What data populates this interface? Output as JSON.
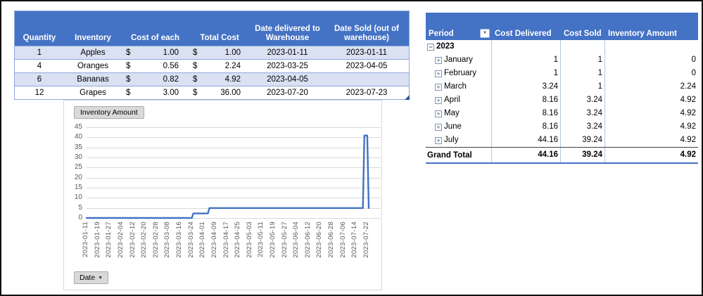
{
  "inventory_table": {
    "currency_symbol": "$",
    "headers": [
      "Quantity",
      "Inventory",
      "Cost of each",
      "Total Cost",
      "Date delivered to Warehouse",
      "Date Sold (out of warehouse)"
    ],
    "rows": [
      {
        "quantity": "1",
        "inventory": "Apples",
        "cost_each": "1.00",
        "total_cost": "1.00",
        "date_delivered": "2023-01-11",
        "date_sold": "2023-01-11"
      },
      {
        "quantity": "4",
        "inventory": "Oranges",
        "cost_each": "0.56",
        "total_cost": "2.24",
        "date_delivered": "2023-03-25",
        "date_sold": "2023-04-05"
      },
      {
        "quantity": "6",
        "inventory": "Bananas",
        "cost_each": "0.82",
        "total_cost": "4.92",
        "date_delivered": "2023-04-05",
        "date_sold": ""
      },
      {
        "quantity": "12",
        "inventory": "Grapes",
        "cost_each": "3.00",
        "total_cost": "36.00",
        "date_delivered": "2023-07-20",
        "date_sold": "2023-07-23"
      }
    ]
  },
  "pivot_table": {
    "headers": {
      "period": "Period",
      "cost_delivered": "Cost Delivered",
      "cost_sold": "Cost Sold",
      "inventory_amount": "Inventory Amount"
    },
    "year_row": {
      "label": "2023"
    },
    "rows": [
      {
        "month": "January",
        "cost_delivered": "1",
        "cost_sold": "1",
        "inventory_amount": "0"
      },
      {
        "month": "February",
        "cost_delivered": "1",
        "cost_sold": "1",
        "inventory_amount": "0"
      },
      {
        "month": "March",
        "cost_delivered": "3.24",
        "cost_sold": "1",
        "inventory_amount": "2.24"
      },
      {
        "month": "April",
        "cost_delivered": "8.16",
        "cost_sold": "3.24",
        "inventory_amount": "4.92"
      },
      {
        "month": "May",
        "cost_delivered": "8.16",
        "cost_sold": "3.24",
        "inventory_amount": "4.92"
      },
      {
        "month": "June",
        "cost_delivered": "8.16",
        "cost_sold": "3.24",
        "inventory_amount": "4.92"
      },
      {
        "month": "July",
        "cost_delivered": "44.16",
        "cost_sold": "39.24",
        "inventory_amount": "4.92"
      }
    ],
    "grand_total": {
      "label": "Grand Total",
      "cost_delivered": "44.16",
      "cost_sold": "39.24",
      "inventory_amount": "4.92"
    }
  },
  "icons": {
    "collapse": "−",
    "expand": "+",
    "filter_arrow": "▼",
    "date_button_arrow": "▼"
  },
  "chart": {
    "value_field_button": "Inventory Amount",
    "axis_field_button": "Date"
  },
  "chart_data": {
    "type": "line",
    "title": "",
    "xlabel": "Date",
    "ylabel": "Inventory Amount",
    "legend": "none",
    "grid": true,
    "x_range": [
      "2023-01-11",
      "2023-07-23"
    ],
    "ylim": [
      0,
      45
    ],
    "y_ticks": [
      0,
      5,
      10,
      15,
      20,
      25,
      30,
      35,
      40,
      45
    ],
    "x_ticks": [
      "2023-01-11",
      "2023-01-19",
      "2023-01-27",
      "2023-02-04",
      "2023-02-12",
      "2023-02-20",
      "2023-02-28",
      "2023-03-08",
      "2023-03-16",
      "2023-03-24",
      "2023-04-01",
      "2023-04-09",
      "2023-04-17",
      "2023-04-25",
      "2023-05-03",
      "2023-05-11",
      "2023-05-19",
      "2023-05-27",
      "2023-06-04",
      "2023-06-12",
      "2023-06-20",
      "2023-06-28",
      "2023-07-06",
      "2023-07-14",
      "2023-07-22"
    ],
    "series": [
      {
        "name": "Inventory Amount",
        "color": "#4472C4",
        "points": [
          [
            "2023-01-11",
            0
          ],
          [
            "2023-03-24",
            0
          ],
          [
            "2023-03-25",
            2.24
          ],
          [
            "2023-04-04",
            2.24
          ],
          [
            "2023-04-05",
            4.92
          ],
          [
            "2023-07-19",
            4.92
          ],
          [
            "2023-07-20",
            40.92
          ],
          [
            "2023-07-22",
            40.92
          ],
          [
            "2023-07-23",
            4.92
          ]
        ]
      }
    ]
  },
  "colors": {
    "header_blue": "#4472C4",
    "band_blue": "#D9E1F2",
    "table_border": "#8EA9DB",
    "pivot_border": "#B4C6E7",
    "gridline": "#D9D9D9",
    "axis_text": "#595959",
    "series_line": "#4472C4",
    "button_bg": "#D9D9D9",
    "button_border": "#ABABAB"
  }
}
